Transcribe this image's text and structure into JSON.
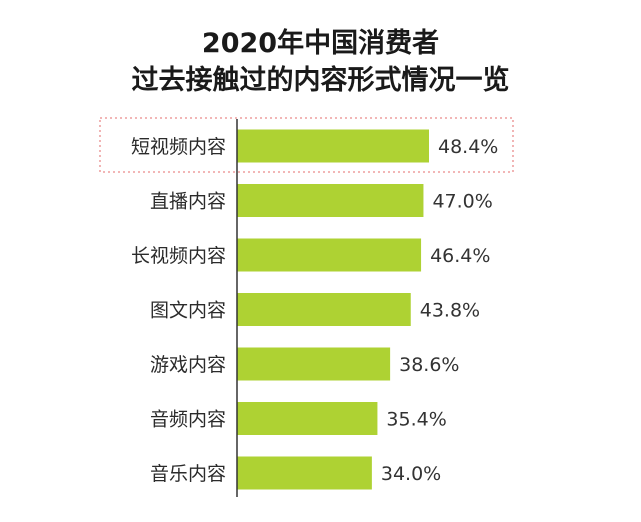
{
  "title": {
    "line1": "2020年中国消费者",
    "line2": "过去接触过的内容形式情况一览"
  },
  "colors": {
    "bar": "#aed233",
    "highlight_border": "#e98b8b",
    "axis": "#333333"
  },
  "chart_data": {
    "type": "bar",
    "orientation": "horizontal",
    "categories": [
      "短视频内容",
      "直播内容",
      "长视频内容",
      "图文内容",
      "游戏内容",
      "音频内容",
      "音乐内容"
    ],
    "values": [
      48.4,
      47.0,
      46.4,
      43.8,
      38.6,
      35.4,
      34.0
    ],
    "value_labels": [
      "48.4%",
      "47.0%",
      "46.4%",
      "43.8%",
      "38.6%",
      "35.4%",
      "34.0%"
    ],
    "unit": "%",
    "highlighted_category": "短视频内容",
    "grid": false
  }
}
